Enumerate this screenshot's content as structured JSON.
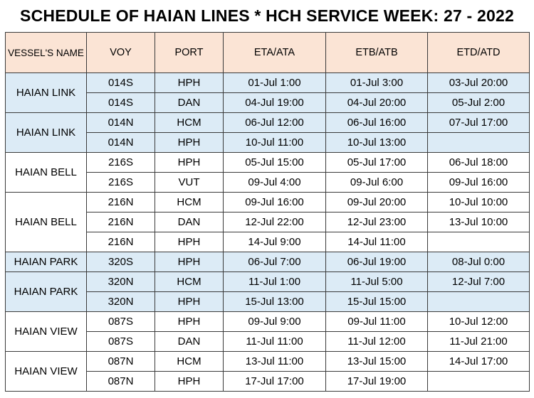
{
  "title": "SCHEDULE OF HAIAN LINES * HCH SERVICE WEEK: 27 - 2022",
  "headers": [
    "VESSEL'S NAME",
    "VOY",
    "PORT",
    "ETA/ATA",
    "ETB/ATB",
    "ETD/ATD"
  ],
  "colors": {
    "header_bg": "#fbe4d5",
    "blue_row_bg": "#dcebf6",
    "white_row_bg": "#ffffff",
    "border": "#3a3a3a"
  },
  "groups": [
    {
      "vessel": "HAIAN LINK",
      "shade": "blue",
      "rows": [
        {
          "voy": "014S",
          "port": "HPH",
          "eta": "01-Jul 1:00",
          "etb": "01-Jul 3:00",
          "etd": "03-Jul 20:00"
        },
        {
          "voy": "014S",
          "port": "DAN",
          "eta": "04-Jul 19:00",
          "etb": "04-Jul 20:00",
          "etd": "05-Jul 2:00"
        }
      ]
    },
    {
      "vessel": "HAIAN LINK",
      "shade": "blue",
      "rows": [
        {
          "voy": "014N",
          "port": "HCM",
          "eta": "06-Jul 12:00",
          "etb": "06-Jul 16:00",
          "etd": "07-Jul 17:00"
        },
        {
          "voy": "014N",
          "port": "HPH",
          "eta": "10-Jul 11:00",
          "etb": "10-Jul 13:00",
          "etd": ""
        }
      ]
    },
    {
      "vessel": "HAIAN BELL",
      "shade": "white",
      "rows": [
        {
          "voy": "216S",
          "port": "HPH",
          "eta": "05-Jul 15:00",
          "etb": "05-Jul 17:00",
          "etd": "06-Jul 18:00"
        },
        {
          "voy": "216S",
          "port": "VUT",
          "eta": "09-Jul 4:00",
          "etb": "09-Jul 6:00",
          "etd": "09-Jul 16:00"
        }
      ]
    },
    {
      "vessel": "HAIAN BELL",
      "shade": "white",
      "rows": [
        {
          "voy": "216N",
          "port": "HCM",
          "eta": "09-Jul 16:00",
          "etb": "09-Jul 20:00",
          "etd": "10-Jul 10:00"
        },
        {
          "voy": "216N",
          "port": "DAN",
          "eta": "12-Jul 22:00",
          "etb": "12-Jul 23:00",
          "etd": "13-Jul 10:00"
        },
        {
          "voy": "216N",
          "port": "HPH",
          "eta": "14-Jul 9:00",
          "etb": "14-Jul 11:00",
          "etd": ""
        }
      ]
    },
    {
      "vessel": "HAIAN PARK",
      "shade": "blue",
      "rows": [
        {
          "voy": "320S",
          "port": "HPH",
          "eta": "06-Jul 7:00",
          "etb": "06-Jul 19:00",
          "etd": "08-Jul 0:00"
        }
      ]
    },
    {
      "vessel": "HAIAN PARK",
      "shade": "blue",
      "rows": [
        {
          "voy": "320N",
          "port": "HCM",
          "eta": "11-Jul 1:00",
          "etb": "11-Jul 5:00",
          "etd": "12-Jul 7:00"
        },
        {
          "voy": "320N",
          "port": "HPH",
          "eta": "15-Jul 13:00",
          "etb": "15-Jul 15:00",
          "etd": ""
        }
      ]
    },
    {
      "vessel": "HAIAN VIEW",
      "shade": "white",
      "rows": [
        {
          "voy": "087S",
          "port": "HPH",
          "eta": "09-Jul 9:00",
          "etb": "09-Jul 11:00",
          "etd": "10-Jul 12:00"
        },
        {
          "voy": "087S",
          "port": "DAN",
          "eta": "11-Jul 11:00",
          "etb": "11-Jul 12:00",
          "etd": "11-Jul 21:00"
        }
      ]
    },
    {
      "vessel": "HAIAN VIEW",
      "shade": "white",
      "rows": [
        {
          "voy": "087N",
          "port": "HCM",
          "eta": "13-Jul 11:00",
          "etb": "13-Jul 15:00",
          "etd": "14-Jul 17:00"
        },
        {
          "voy": "087N",
          "port": "HPH",
          "eta": "17-Jul 17:00",
          "etb": "17-Jul 19:00",
          "etd": ""
        }
      ]
    }
  ]
}
